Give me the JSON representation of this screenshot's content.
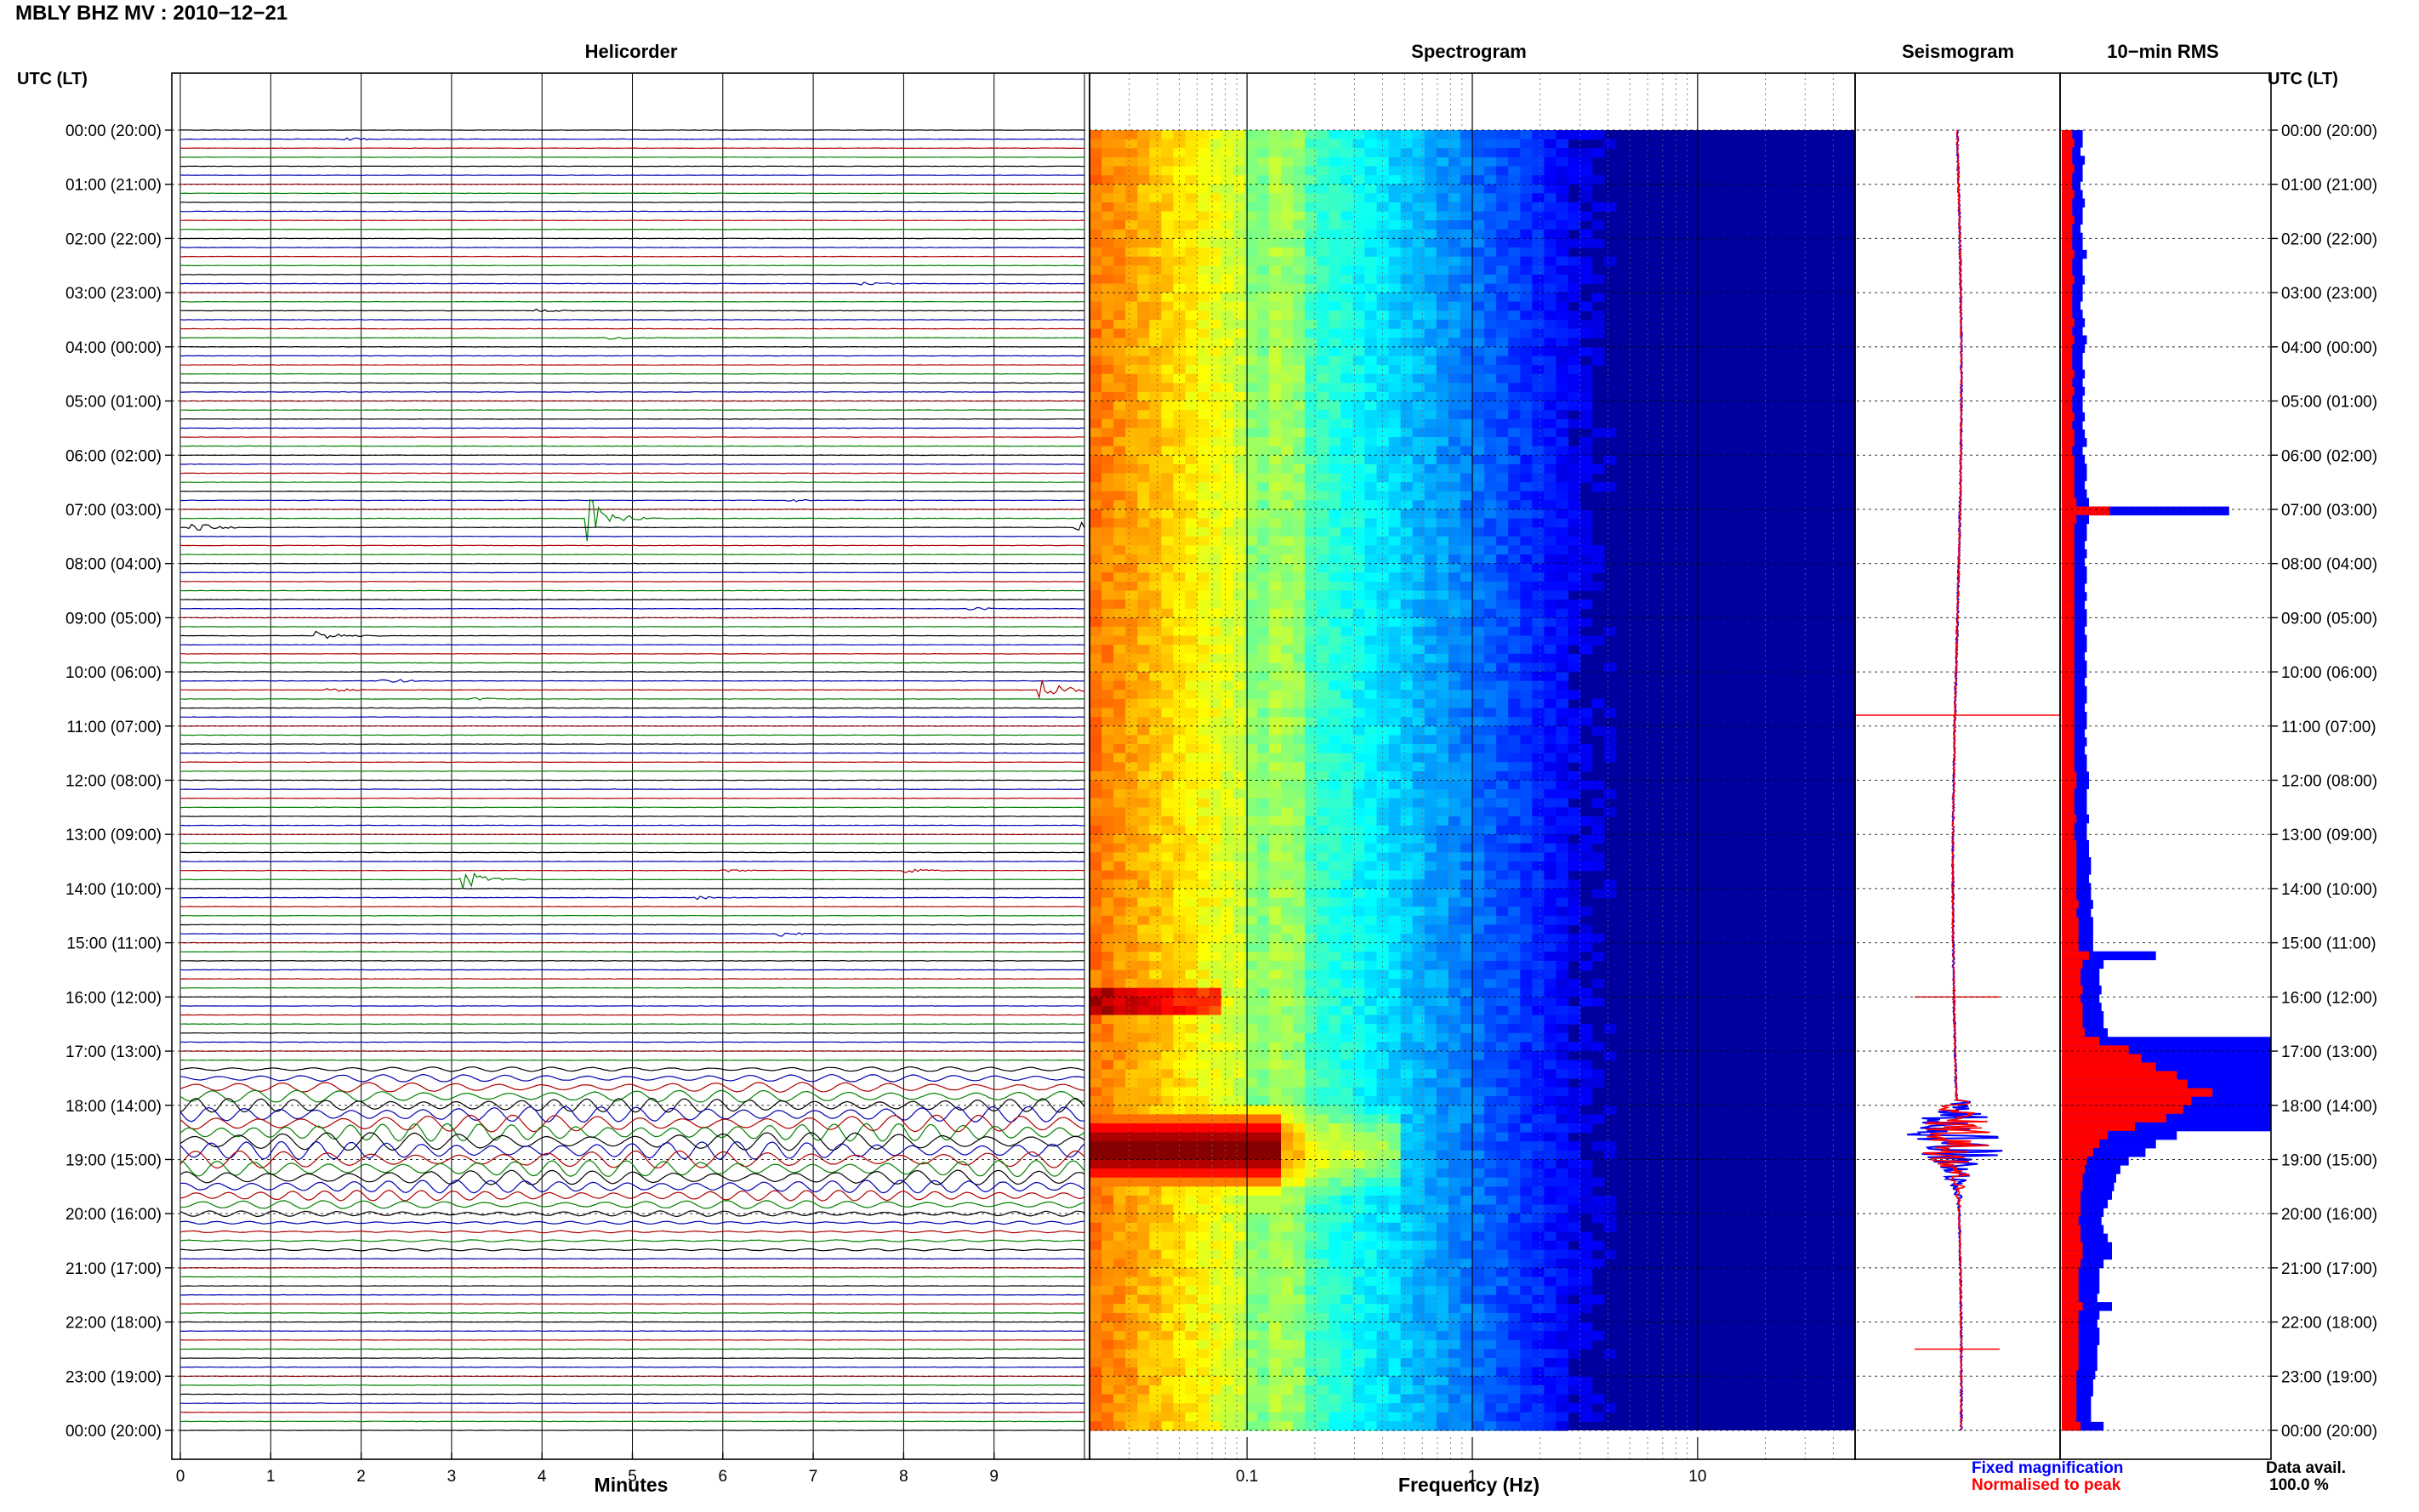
{
  "header": {
    "title": "MBLY BHZ MV : 2010−12−21",
    "tz_label": "UTC (LT)"
  },
  "panels": {
    "helicorder": "Helicorder",
    "spectrogram": "Spectrogram",
    "seismogram": "Seismogram",
    "rms": "10−min RMS"
  },
  "footer": {
    "legend_fixed": "Fixed magnification",
    "legend_norm": "Normalised to peak",
    "data_avail_label": "Data avail.",
    "data_avail_value": "100.0 %"
  },
  "colors": {
    "fixed": "#0000ff",
    "normalised": "#ff0000",
    "trace_cycle": [
      "#000000",
      "#0000b0",
      "#b00000",
      "#008000"
    ]
  },
  "chart_data": [
    {
      "type": "line",
      "name": "helicorder",
      "xlabel": "Minutes",
      "xlim": [
        0,
        10
      ],
      "x_ticks": [
        0,
        1,
        2,
        3,
        4,
        5,
        6,
        7,
        8,
        9
      ],
      "rows_per_hour": 6,
      "hours": 24,
      "y_ticks": [
        "00:00 (20:00)",
        "01:00 (21:00)",
        "02:00 (22:00)",
        "03:00 (23:00)",
        "04:00 (00:00)",
        "05:00 (01:00)",
        "06:00 (02:00)",
        "07:00 (03:00)",
        "08:00 (04:00)",
        "09:00 (05:00)",
        "10:00 (06:00)",
        "11:00 (07:00)",
        "12:00 (08:00)",
        "13:00 (09:00)",
        "14:00 (10:00)",
        "15:00 (11:00)",
        "16:00 (12:00)",
        "17:00 (13:00)",
        "18:00 (14:00)",
        "19:00 (15:00)",
        "20:00 (16:00)",
        "21:00 (17:00)",
        "22:00 (18:00)",
        "23:00 (19:00)",
        "00:00 (20:00)"
      ],
      "events": [
        {
          "row": 1,
          "minute": 1.8,
          "amp": 0.35
        },
        {
          "row": 17,
          "minute": 7.5,
          "amp": 0.4
        },
        {
          "row": 20,
          "minute": 3.9,
          "amp": 0.3
        },
        {
          "row": 23,
          "minute": 4.7,
          "amp": 0.4
        },
        {
          "row": 41,
          "minute": 6.7,
          "amp": 0.3
        },
        {
          "row": 43,
          "minute": 4.5,
          "amp": 3.2
        },
        {
          "row": 44,
          "minute": 0.1,
          "amp": 0.9
        },
        {
          "row": 44,
          "minute": 9.9,
          "amp": 1.0
        },
        {
          "row": 53,
          "minute": 8.7,
          "amp": 0.3
        },
        {
          "row": 56,
          "minute": 1.5,
          "amp": 0.8
        },
        {
          "row": 61,
          "minute": 2.2,
          "amp": 0.5
        },
        {
          "row": 62,
          "minute": 1.6,
          "amp": 0.4
        },
        {
          "row": 62,
          "minute": 9.5,
          "amp": 1.8
        },
        {
          "row": 63,
          "minute": 3.2,
          "amp": 0.3
        },
        {
          "row": 82,
          "minute": 6.0,
          "amp": 0.3
        },
        {
          "row": 82,
          "minute": 8.0,
          "amp": 0.4
        },
        {
          "row": 83,
          "minute": 3.1,
          "amp": 1.6
        },
        {
          "row": 85,
          "minute": 5.7,
          "amp": 0.3
        },
        {
          "row": 89,
          "minute": 6.6,
          "amp": 0.6
        }
      ],
      "tremor_rows": [
        104,
        124
      ]
    },
    {
      "type": "heatmap",
      "name": "spectrogram",
      "xlabel": "Frequency (Hz)",
      "x_scale": "log",
      "xlim": [
        0.02,
        50
      ],
      "x_ticks": [
        0.1,
        1,
        10
      ],
      "x_tick_labels": [
        "0.1",
        "1",
        "10"
      ],
      "colormap": "jet",
      "strong_energy": {
        "hours": [
          17.9,
          20.0
        ],
        "freq_hz": [
          0.02,
          0.15
        ]
      }
    },
    {
      "type": "line",
      "name": "seismogram",
      "series": [
        {
          "name": "Fixed magnification",
          "color": "#0000ff"
        },
        {
          "name": "Normalised to peak",
          "color": "#ff0000"
        }
      ],
      "spikes_hours": [
        10.8,
        16.0,
        22.5
      ],
      "burst_hours": [
        17.9,
        20.0
      ]
    },
    {
      "type": "bar",
      "name": "rms",
      "orientation": "horizontal",
      "hours": [
        0,
        24
      ],
      "fixed_values": [
        0.1,
        0.1,
        0.09,
        0.11,
        0.1,
        0.1,
        0.09,
        0.1,
        0.11,
        0.1,
        0.1,
        0.09,
        0.1,
        0.1,
        0.12,
        0.1,
        0.1,
        0.11,
        0.1,
        0.1,
        0.09,
        0.1,
        0.11,
        0.1,
        0.12,
        0.11,
        0.1,
        0.1,
        0.11,
        0.1,
        0.11,
        0.1,
        0.1,
        0.11,
        0.1,
        0.11,
        0.12,
        0.1,
        0.11,
        0.12,
        0.12,
        0.11,
        0.12,
        0.13,
        0.8,
        0.13,
        0.12,
        0.12,
        0.11,
        0.12,
        0.11,
        0.12,
        0.12,
        0.11,
        0.12,
        0.11,
        0.12,
        0.12,
        0.11,
        0.12,
        0.12,
        0.11,
        0.12,
        0.12,
        0.11,
        0.12,
        0.12,
        0.11,
        0.12,
        0.12,
        0.11,
        0.12,
        0.11,
        0.12,
        0.12,
        0.13,
        0.13,
        0.12,
        0.12,
        0.12,
        0.13,
        0.12,
        0.12,
        0.13,
        0.13,
        0.14,
        0.14,
        0.13,
        0.14,
        0.14,
        0.15,
        0.14,
        0.15,
        0.15,
        0.15,
        0.15,
        0.45,
        0.2,
        0.18,
        0.18,
        0.19,
        0.18,
        0.19,
        0.2,
        0.2,
        0.22,
        1.0,
        1.0,
        1.0,
        1.0,
        1.0,
        1.0,
        1.0,
        1.0,
        1.0,
        1.0,
        1.0,
        0.55,
        0.45,
        0.4,
        0.32,
        0.28,
        0.26,
        0.25,
        0.24,
        0.22,
        0.2,
        0.19,
        0.2,
        0.22,
        0.24,
        0.24,
        0.2,
        0.18,
        0.18,
        0.18,
        0.17,
        0.24,
        0.18,
        0.17,
        0.18,
        0.18,
        0.17,
        0.17,
        0.17,
        0.16,
        0.15,
        0.15,
        0.14,
        0.14,
        0.14,
        0.2
      ],
      "norm_values": [
        0.05,
        0.06,
        0.05,
        0.05,
        0.06,
        0.05,
        0.05,
        0.06,
        0.05,
        0.05,
        0.06,
        0.05,
        0.05,
        0.05,
        0.06,
        0.05,
        0.05,
        0.06,
        0.05,
        0.05,
        0.05,
        0.05,
        0.06,
        0.05,
        0.06,
        0.05,
        0.05,
        0.05,
        0.06,
        0.05,
        0.06,
        0.05,
        0.05,
        0.06,
        0.05,
        0.06,
        0.06,
        0.05,
        0.06,
        0.06,
        0.06,
        0.06,
        0.06,
        0.07,
        0.23,
        0.07,
        0.06,
        0.06,
        0.06,
        0.06,
        0.06,
        0.06,
        0.06,
        0.06,
        0.06,
        0.06,
        0.06,
        0.06,
        0.06,
        0.06,
        0.06,
        0.06,
        0.06,
        0.06,
        0.06,
        0.06,
        0.06,
        0.06,
        0.06,
        0.06,
        0.06,
        0.06,
        0.06,
        0.06,
        0.06,
        0.07,
        0.07,
        0.06,
        0.06,
        0.06,
        0.07,
        0.06,
        0.06,
        0.07,
        0.07,
        0.07,
        0.07,
        0.07,
        0.07,
        0.07,
        0.08,
        0.07,
        0.08,
        0.08,
        0.08,
        0.08,
        0.13,
        0.1,
        0.09,
        0.09,
        0.1,
        0.09,
        0.1,
        0.1,
        0.1,
        0.11,
        0.18,
        0.32,
        0.38,
        0.45,
        0.55,
        0.6,
        0.72,
        0.62,
        0.58,
        0.5,
        0.35,
        0.22,
        0.18,
        0.15,
        0.12,
        0.11,
        0.1,
        0.1,
        0.09,
        0.09,
        0.09,
        0.08,
        0.09,
        0.09,
        0.1,
        0.1,
        0.09,
        0.08,
        0.08,
        0.08,
        0.08,
        0.1,
        0.08,
        0.08,
        0.08,
        0.08,
        0.08,
        0.08,
        0.08,
        0.07,
        0.07,
        0.07,
        0.07,
        0.07,
        0.07,
        0.09
      ]
    }
  ]
}
